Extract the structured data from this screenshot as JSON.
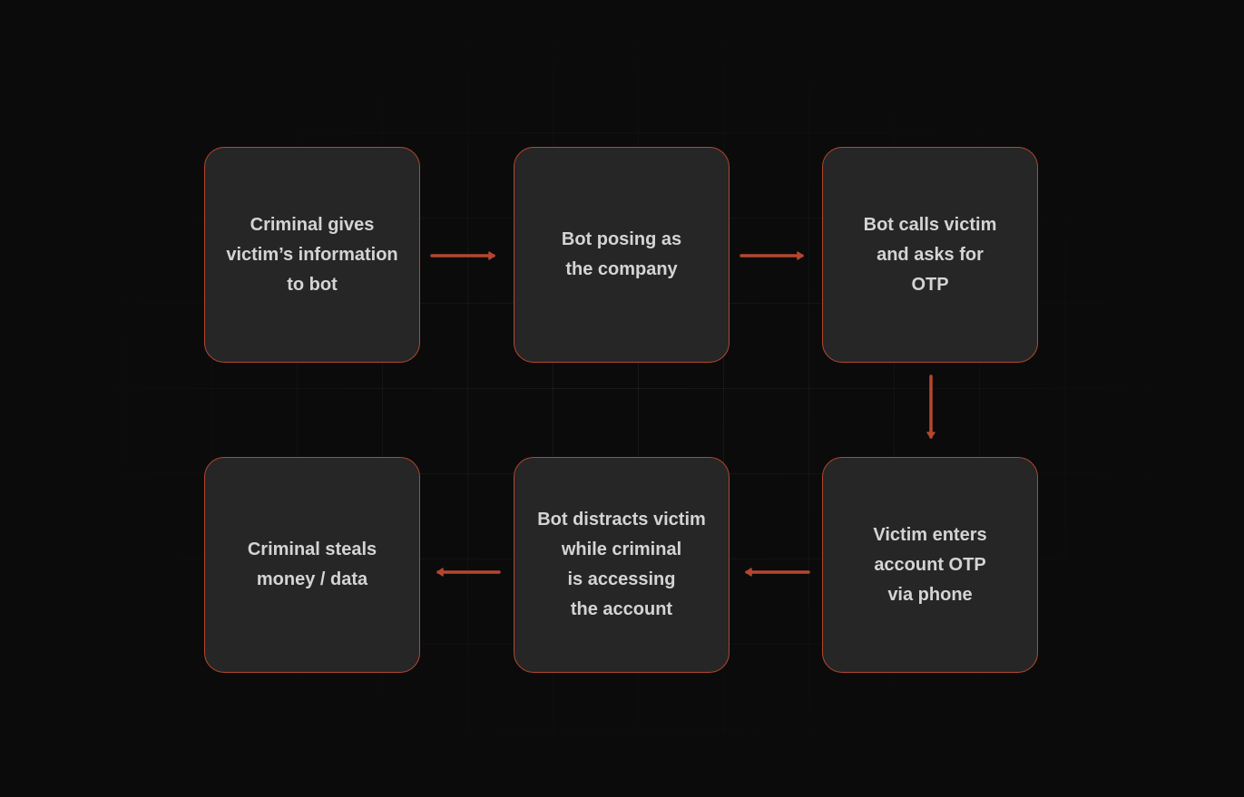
{
  "diagram": {
    "accent_color": "#b5472f",
    "steps": [
      {
        "id": "criminal-gives-info",
        "label": "Criminal gives\nvictim’s information\nto bot"
      },
      {
        "id": "bot-posing",
        "label": "Bot posing as\nthe company"
      },
      {
        "id": "bot-calls-victim",
        "label": "Bot calls victim\nand asks for\nOTP"
      },
      {
        "id": "victim-enters-otp",
        "label": "Victim enters\naccount OTP\nvia phone"
      },
      {
        "id": "bot-distracts",
        "label": "Bot distracts victim\nwhile criminal\nis accessing\nthe account"
      },
      {
        "id": "criminal-steals",
        "label": "Criminal steals\nmoney / data"
      }
    ],
    "connections": [
      {
        "from": "criminal-gives-info",
        "to": "bot-posing",
        "direction": "right"
      },
      {
        "from": "bot-posing",
        "to": "bot-calls-victim",
        "direction": "right"
      },
      {
        "from": "bot-calls-victim",
        "to": "victim-enters-otp",
        "direction": "down"
      },
      {
        "from": "victim-enters-otp",
        "to": "bot-distracts",
        "direction": "left"
      },
      {
        "from": "bot-distracts",
        "to": "criminal-steals",
        "direction": "left"
      }
    ]
  }
}
